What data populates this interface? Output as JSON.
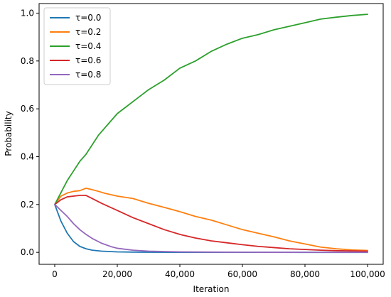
{
  "chart_data": {
    "type": "line",
    "xlabel": "Iteration",
    "ylabel": "Probability",
    "xlim": [
      -5000,
      105000
    ],
    "ylim": [
      -0.05,
      1.04
    ],
    "x_ticks": [
      0,
      20000,
      40000,
      60000,
      80000,
      100000
    ],
    "x_tick_labels": [
      "0",
      "20,000",
      "40,000",
      "60,000",
      "80,000",
      "100,000"
    ],
    "y_ticks": [
      0.0,
      0.2,
      0.4,
      0.6,
      0.8,
      1.0
    ],
    "y_tick_labels": [
      "0.0",
      "0.2",
      "0.4",
      "0.6",
      "0.8",
      "1.0"
    ],
    "grid": false,
    "legend_position": "top-left",
    "series": [
      {
        "name": "τ=0.0",
        "color": "#1f77b4",
        "x": [
          0,
          2000,
          4000,
          6000,
          8000,
          10000,
          12000,
          15000,
          20000,
          25000,
          30000,
          40000,
          60000,
          80000,
          100000
        ],
        "y": [
          0.2,
          0.13,
          0.08,
          0.045,
          0.025,
          0.015,
          0.009,
          0.005,
          0.002,
          0.001,
          0.0005,
          0.0003,
          0.0001,
          0.0,
          0.0
        ]
      },
      {
        "name": "τ=0.2",
        "color": "#ff7f0e",
        "x": [
          0,
          2000,
          4000,
          6000,
          8000,
          10000,
          12000,
          14000,
          16000,
          20000,
          25000,
          30000,
          35000,
          40000,
          45000,
          50000,
          55000,
          60000,
          65000,
          70000,
          75000,
          80000,
          85000,
          90000,
          95000,
          100000
        ],
        "y": [
          0.2,
          0.235,
          0.248,
          0.255,
          0.258,
          0.268,
          0.262,
          0.255,
          0.247,
          0.235,
          0.225,
          0.205,
          0.188,
          0.17,
          0.15,
          0.135,
          0.115,
          0.095,
          0.08,
          0.065,
          0.048,
          0.035,
          0.022,
          0.015,
          0.01,
          0.008
        ]
      },
      {
        "name": "τ=0.4",
        "color": "#2ca02c",
        "x": [
          0,
          2000,
          4000,
          6000,
          8000,
          10000,
          12000,
          14000,
          16000,
          18000,
          20000,
          22000,
          25000,
          28000,
          30000,
          35000,
          40000,
          45000,
          50000,
          55000,
          60000,
          65000,
          70000,
          75000,
          80000,
          85000,
          90000,
          95000,
          100000
        ],
        "y": [
          0.2,
          0.25,
          0.3,
          0.34,
          0.38,
          0.41,
          0.45,
          0.49,
          0.52,
          0.55,
          0.58,
          0.6,
          0.63,
          0.66,
          0.68,
          0.72,
          0.77,
          0.8,
          0.84,
          0.87,
          0.895,
          0.91,
          0.93,
          0.945,
          0.96,
          0.975,
          0.983,
          0.99,
          0.995
        ]
      },
      {
        "name": "τ=0.6",
        "color": "#d62728",
        "x": [
          0,
          2000,
          4000,
          6000,
          8000,
          10000,
          12000,
          15000,
          20000,
          25000,
          30000,
          35000,
          40000,
          45000,
          50000,
          55000,
          60000,
          65000,
          70000,
          75000,
          80000,
          85000,
          90000,
          95000,
          100000
        ],
        "y": [
          0.2,
          0.22,
          0.232,
          0.235,
          0.238,
          0.238,
          0.225,
          0.205,
          0.175,
          0.145,
          0.12,
          0.095,
          0.075,
          0.06,
          0.048,
          0.04,
          0.032,
          0.025,
          0.02,
          0.015,
          0.012,
          0.009,
          0.007,
          0.006,
          0.005
        ]
      },
      {
        "name": "τ=0.8",
        "color": "#9467bd",
        "x": [
          0,
          2000,
          4000,
          6000,
          8000,
          10000,
          12000,
          15000,
          18000,
          20000,
          25000,
          30000,
          40000,
          50000,
          60000,
          80000,
          100000
        ],
        "y": [
          0.2,
          0.175,
          0.15,
          0.12,
          0.095,
          0.075,
          0.058,
          0.038,
          0.024,
          0.017,
          0.009,
          0.005,
          0.002,
          0.001,
          0.0005,
          0.0002,
          0.0001
        ]
      }
    ]
  }
}
